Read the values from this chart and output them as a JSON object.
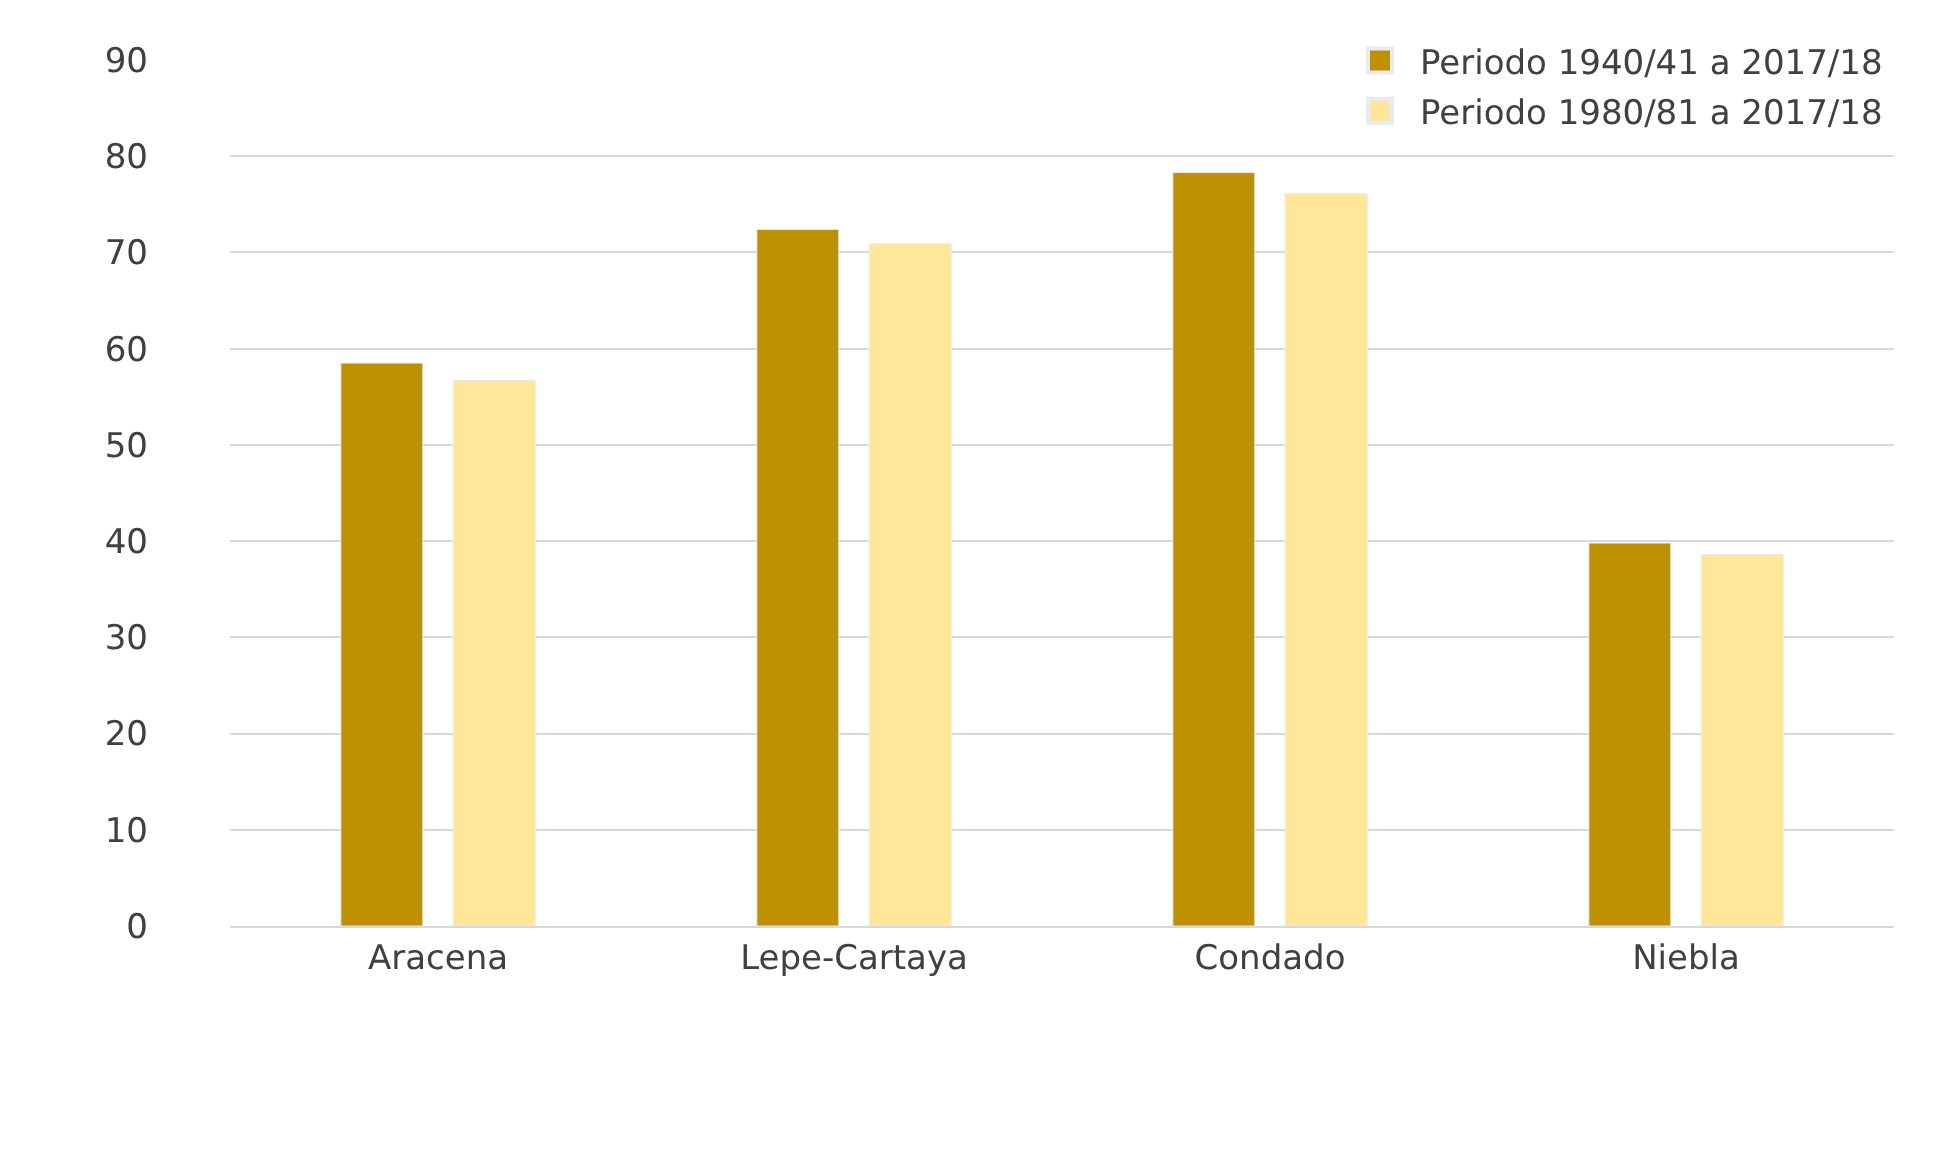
{
  "chart_data": {
    "type": "bar",
    "categories": [
      "Aracena",
      "Lepe-Cartaya",
      "Condado",
      "Niebla"
    ],
    "series": [
      {
        "name": "Periodo 1940/41 a 2017/18",
        "color": "#bf9000",
        "values": [
          58.5,
          72.4,
          78.3,
          39.8
        ]
      },
      {
        "name": "Periodo 1980/81 a 2017/18",
        "color": "#ffe699",
        "values": [
          56.7,
          70.9,
          76.1,
          38.6
        ]
      }
    ],
    "ylim": [
      0,
      90
    ],
    "yticks": [
      0,
      10,
      20,
      30,
      40,
      50,
      60,
      70,
      80,
      90
    ],
    "grid": "y",
    "legend": "top right"
  }
}
